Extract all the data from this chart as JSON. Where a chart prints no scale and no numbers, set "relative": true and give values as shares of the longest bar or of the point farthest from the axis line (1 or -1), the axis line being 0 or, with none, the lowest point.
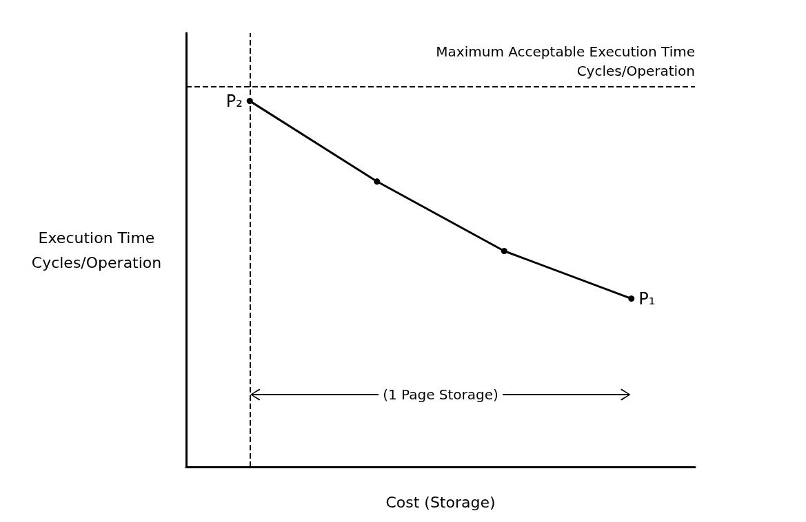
{
  "chart_data": {
    "type": "line",
    "relative": true,
    "categories": [
      null,
      null,
      null,
      null
    ],
    "values": [
      1,
      0.78,
      0.59,
      0.46
    ],
    "color": "#000000",
    "marker": "circle",
    "line_style": "solid",
    "grid": false,
    "xlabel": "Cost (Storage)",
    "ylabel": "Execution Time\nCycles/Operation",
    "ref_lines": [
      {
        "axis": "y",
        "value": 1.04,
        "label": "Maximum Acceptable Execution Time\nCycles/Operation",
        "line_style": "dashed"
      }
    ],
    "annotations": [
      "P₂",
      "P₁",
      "(1 Page Storage)"
    ]
  }
}
